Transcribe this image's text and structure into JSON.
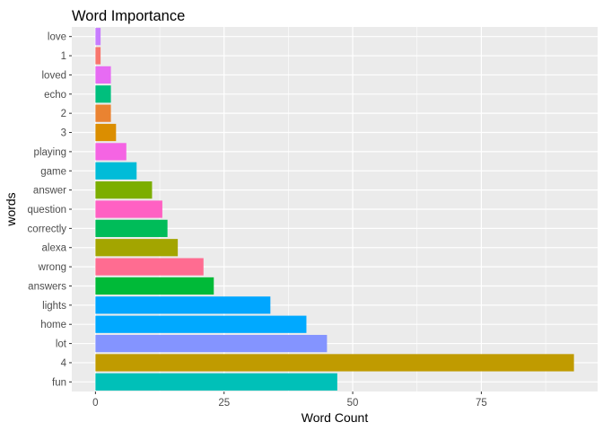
{
  "chart_data": {
    "type": "bar",
    "orientation": "horizontal",
    "title": "Word Importance",
    "xlabel": "Word Count",
    "ylabel": "words",
    "xlim": [
      -4.6,
      97.6
    ],
    "x_ticks": [
      0,
      25,
      50,
      75
    ],
    "grid": true,
    "legend": "none",
    "categories": [
      "fun",
      "4",
      "lot",
      "home",
      "lights",
      "answers",
      "wrong",
      "alexa",
      "correctly",
      "question",
      "answer",
      "game",
      "playing",
      "3",
      "2",
      "echo",
      "loved",
      "1",
      "love"
    ],
    "values": [
      47,
      93,
      45,
      41,
      34,
      23,
      21,
      16,
      14,
      13,
      11,
      8,
      6,
      4,
      3,
      3,
      3,
      1,
      1
    ],
    "colors": [
      "#00C0B8",
      "#C09B00",
      "#8494FF",
      "#00A9FF",
      "#00A6FF",
      "#00BA38",
      "#FF6C91",
      "#A3A500",
      "#00BC59",
      "#FF61C3",
      "#7CAE00",
      "#00BCD8",
      "#F564E3",
      "#DB8E00",
      "#EA8331",
      "#00BF7D",
      "#E76BF3",
      "#F8766D",
      "#C77CFF"
    ]
  }
}
